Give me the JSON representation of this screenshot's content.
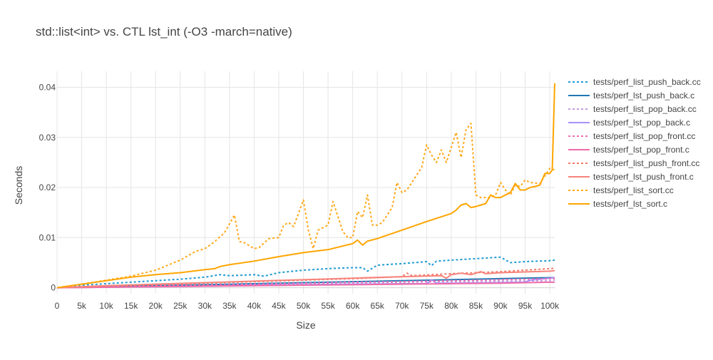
{
  "chart_data": {
    "type": "line",
    "title": "std::list<int> vs. CTL lst_int (-O3 -march=native)",
    "xlabel": "Size",
    "ylabel": "Seconds",
    "xlim": [
      0,
      101000
    ],
    "ylim": [
      -0.0012,
      0.0432
    ],
    "x_ticks": [
      0,
      5000,
      10000,
      15000,
      20000,
      25000,
      30000,
      35000,
      40000,
      45000,
      50000,
      55000,
      60000,
      65000,
      70000,
      75000,
      80000,
      85000,
      90000,
      95000,
      100000
    ],
    "x_tick_labels": [
      "0",
      "5k",
      "10k",
      "15k",
      "20k",
      "25k",
      "30k",
      "35k",
      "40k",
      "45k",
      "50k",
      "55k",
      "60k",
      "65k",
      "70k",
      "75k",
      "80k",
      "85k",
      "90k",
      "95k",
      "100k"
    ],
    "y_ticks": [
      0,
      0.01,
      0.02,
      0.03,
      0.04
    ],
    "y_tick_labels": [
      "0",
      "0.01",
      "0.02",
      "0.03",
      "0.04"
    ],
    "grid": true,
    "legend_position": "right",
    "series": [
      {
        "name": "tests/perf_list_push_back.cc",
        "color": "#1f9bd1",
        "dash": "dot",
        "x": [
          0,
          5000,
          10000,
          15000,
          20000,
          25000,
          30000,
          33000,
          35000,
          40000,
          42000,
          45000,
          50000,
          55000,
          60000,
          62000,
          63000,
          65000,
          70000,
          75000,
          76000,
          77000,
          80000,
          85000,
          90000,
          92000,
          95000,
          100000,
          101000
        ],
        "y": [
          0,
          0.0005,
          0.0008,
          0.0011,
          0.0014,
          0.0017,
          0.0021,
          0.0026,
          0.0024,
          0.0026,
          0.0023,
          0.003,
          0.0035,
          0.0038,
          0.004,
          0.004,
          0.0033,
          0.0045,
          0.0048,
          0.0052,
          0.0044,
          0.0053,
          0.0055,
          0.0058,
          0.0061,
          0.005,
          0.0052,
          0.0054,
          0.0055
        ]
      },
      {
        "name": "tests/perf_lst_push_back.c",
        "color": "#1f77b4",
        "dash": "solid",
        "x": [
          0,
          10000,
          20000,
          30000,
          40000,
          50000,
          60000,
          70000,
          80000,
          90000,
          100000,
          101000
        ],
        "y": [
          0,
          0.0002,
          0.0004,
          0.0006,
          0.0008,
          0.001,
          0.0012,
          0.0014,
          0.0016,
          0.0018,
          0.002,
          0.002
        ]
      },
      {
        "name": "tests/perf_list_pop_back.cc",
        "color": "#c39be0",
        "dash": "dot",
        "x": [
          0,
          10000,
          20000,
          30000,
          40000,
          50000,
          60000,
          70000,
          80000,
          90000,
          100000,
          101000
        ],
        "y": [
          0,
          0.0002,
          0.0003,
          0.0005,
          0.0007,
          0.0008,
          0.001,
          0.0011,
          0.0012,
          0.0013,
          0.0014,
          0.0015
        ]
      },
      {
        "name": "tests/perf_lst_pop_back.c",
        "color": "#a98ff7",
        "dash": "solid",
        "x": [
          0,
          10000,
          20000,
          30000,
          40000,
          50000,
          60000,
          70000,
          75000,
          76000,
          77000,
          80000,
          90000,
          95000,
          96000,
          100000,
          101000
        ],
        "y": [
          0,
          0.0001,
          0.0002,
          0.0003,
          0.0005,
          0.0006,
          0.0007,
          0.0008,
          0.0008,
          0.0016,
          0.0009,
          0.0009,
          0.001,
          0.0011,
          0.0015,
          0.0019,
          0.002
        ]
      },
      {
        "name": "tests/perf_list_pop_front.cc",
        "color": "#ee6fb5",
        "dash": "dot",
        "x": [
          0,
          10000,
          20000,
          30000,
          40000,
          50000,
          60000,
          70000,
          80000,
          90000,
          100000,
          101000
        ],
        "y": [
          0,
          0.0002,
          0.0004,
          0.0005,
          0.0007,
          0.0009,
          0.0011,
          0.0012,
          0.0014,
          0.0016,
          0.0018,
          0.0018
        ]
      },
      {
        "name": "tests/perf_lst_pop_front.c",
        "color": "#f06aa8",
        "dash": "solid",
        "x": [
          0,
          10000,
          20000,
          30000,
          40000,
          50000,
          60000,
          70000,
          80000,
          90000,
          100000,
          101000
        ],
        "y": [
          0,
          0.0001,
          0.0002,
          0.0003,
          0.0004,
          0.0005,
          0.0006,
          0.0007,
          0.0008,
          0.0009,
          0.0011,
          0.0011
        ]
      },
      {
        "name": "tests/perf_list_push_front.cc",
        "color": "#f07a6a",
        "dash": "dot",
        "x": [
          0,
          10000,
          20000,
          30000,
          40000,
          50000,
          60000,
          70000,
          71000,
          72000,
          80000,
          90000,
          100000,
          101000
        ],
        "y": [
          0,
          0.0003,
          0.0006,
          0.0009,
          0.0012,
          0.0015,
          0.0018,
          0.0022,
          0.0029,
          0.0024,
          0.0028,
          0.0032,
          0.0038,
          0.0039
        ]
      },
      {
        "name": "tests/perf_lst_push_front.c",
        "color": "#f7837b",
        "dash": "solid",
        "x": [
          0,
          10000,
          20000,
          30000,
          40000,
          50000,
          60000,
          70000,
          78000,
          79000,
          80000,
          82000,
          84000,
          86000,
          87000,
          90000,
          100000,
          101000
        ],
        "y": [
          0,
          0.0004,
          0.0007,
          0.001,
          0.0013,
          0.0016,
          0.0019,
          0.0022,
          0.0024,
          0.0019,
          0.0026,
          0.0029,
          0.0026,
          0.0032,
          0.0028,
          0.003,
          0.0033,
          0.0034
        ]
      },
      {
        "name": "tests/perf_list_sort.cc",
        "color": "#ffa81a",
        "dash": "dot",
        "x": [
          0,
          5000,
          10000,
          15000,
          20000,
          25000,
          28000,
          30000,
          32000,
          34000,
          36000,
          37000,
          38000,
          40000,
          41000,
          43000,
          45000,
          46000,
          47000,
          48000,
          50000,
          51000,
          52000,
          53000,
          55000,
          56000,
          58000,
          59000,
          60000,
          61000,
          62000,
          63000,
          64000,
          65000,
          66000,
          67000,
          68000,
          69000,
          70000,
          71000,
          73000,
          74000,
          75000,
          76000,
          77000,
          78000,
          79000,
          80000,
          81000,
          82000,
          83000,
          84000,
          85000,
          86000,
          88000,
          89000,
          90000,
          91000,
          92000,
          93000,
          94000,
          95000,
          96000,
          98000,
          100000,
          101000
        ],
        "y": [
          0,
          0.0007,
          0.0015,
          0.0023,
          0.0035,
          0.0055,
          0.0072,
          0.0078,
          0.0092,
          0.011,
          0.0145,
          0.0092,
          0.009,
          0.0078,
          0.008,
          0.0098,
          0.01,
          0.0125,
          0.013,
          0.0122,
          0.0175,
          0.0115,
          0.0078,
          0.0115,
          0.0125,
          0.0172,
          0.0112,
          0.01,
          0.01,
          0.0152,
          0.014,
          0.0185,
          0.0125,
          0.0125,
          0.013,
          0.0145,
          0.016,
          0.021,
          0.019,
          0.0195,
          0.0225,
          0.024,
          0.0285,
          0.0265,
          0.025,
          0.0275,
          0.025,
          0.028,
          0.031,
          0.026,
          0.0315,
          0.0328,
          0.0185,
          0.018,
          0.018,
          0.0185,
          0.021,
          0.0195,
          0.0185,
          0.0205,
          0.0202,
          0.0215,
          0.021,
          0.0208,
          0.0238,
          0.0235
        ]
      },
      {
        "name": "tests/perf_lst_sort.c",
        "color": "#ffa500",
        "dash": "solid",
        "x": [
          0,
          5000,
          10000,
          15000,
          20000,
          25000,
          30000,
          32000,
          33000,
          35000,
          40000,
          45000,
          50000,
          55000,
          60000,
          61000,
          62000,
          63000,
          65000,
          70000,
          75000,
          80000,
          81000,
          82000,
          83000,
          84000,
          85000,
          86000,
          87000,
          88000,
          89000,
          90000,
          91000,
          92000,
          93000,
          94000,
          95000,
          96000,
          97000,
          98000,
          99000,
          100000,
          100500,
          101000
        ],
        "y": [
          0,
          0.0007,
          0.0014,
          0.0021,
          0.0026,
          0.003,
          0.0036,
          0.0038,
          0.0042,
          0.0046,
          0.0053,
          0.0062,
          0.007,
          0.0076,
          0.0088,
          0.0095,
          0.0085,
          0.0093,
          0.0098,
          0.0115,
          0.0132,
          0.0148,
          0.0155,
          0.0165,
          0.0168,
          0.016,
          0.0162,
          0.0165,
          0.0168,
          0.0185,
          0.018,
          0.018,
          0.0185,
          0.019,
          0.0208,
          0.0195,
          0.0195,
          0.02,
          0.0202,
          0.0205,
          0.0228,
          0.0228,
          0.0235,
          0.0408
        ]
      }
    ]
  }
}
